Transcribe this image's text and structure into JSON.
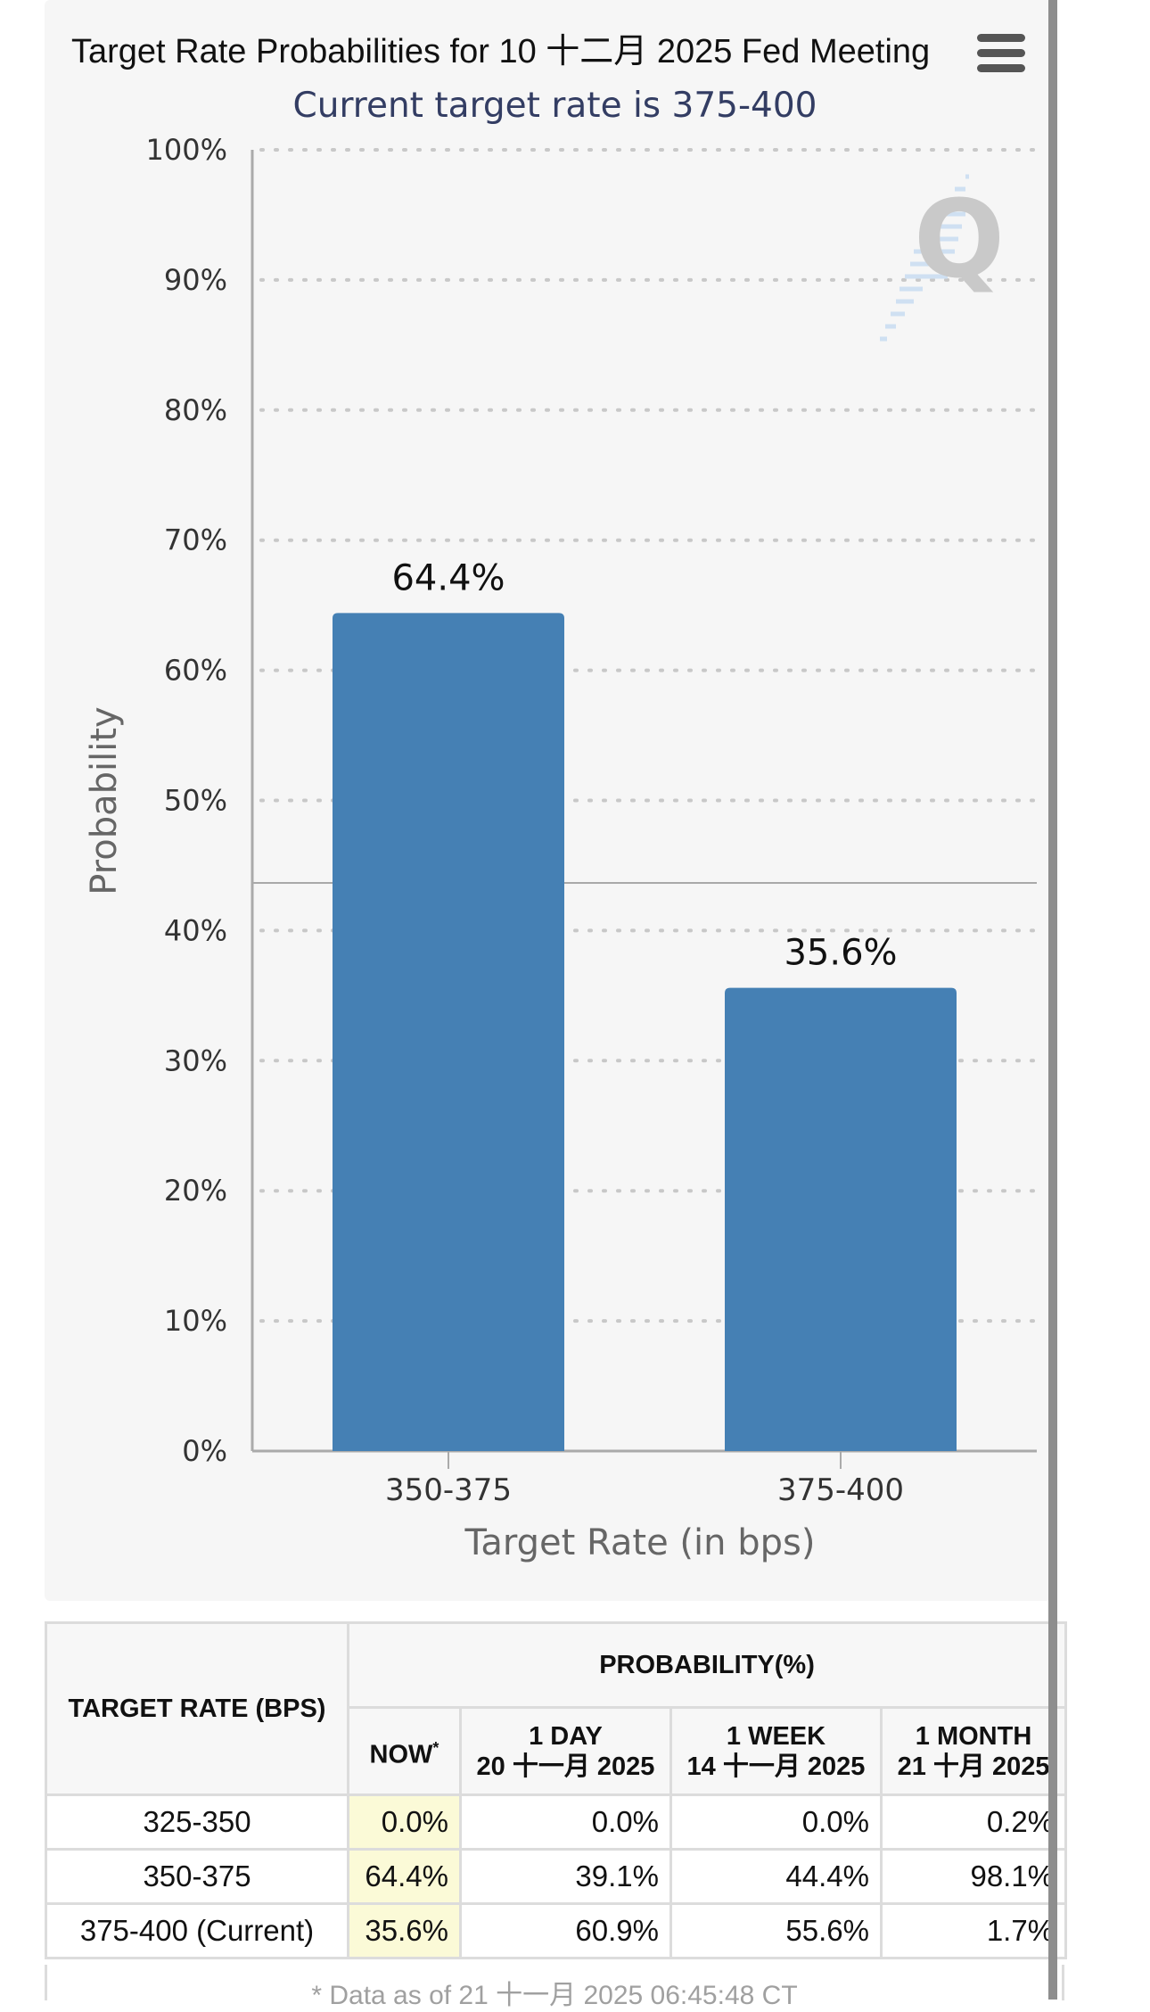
{
  "chart_data": {
    "type": "bar",
    "title": "Target Rate Probabilities for 10 十二月 2025 Fed Meeting",
    "subtitle": "Current target rate is 375-400",
    "categories": [
      "350-375",
      "375-400"
    ],
    "values": [
      64.4,
      35.6
    ],
    "data_labels": [
      "64.4%",
      "35.6%"
    ],
    "xlabel": "Target Rate (in bps)",
    "ylabel": "Probability",
    "ylim": [
      0,
      100
    ],
    "yticks": [
      "0%",
      "10%",
      "20%",
      "30%",
      "40%",
      "50%",
      "60%",
      "70%",
      "80%",
      "90%",
      "100%"
    ],
    "grid": true,
    "bar_color": "#4580b4"
  },
  "menu_icon": "hamburger-menu-icon",
  "watermark_icon": "q-logo-icon",
  "table": {
    "rate_header": "TARGET RATE (BPS)",
    "probability_header": "PROBABILITY(%)",
    "columns": [
      {
        "line1": "NOW",
        "line2": "",
        "marker": "*"
      },
      {
        "line1": "1 DAY",
        "line2": "20 十一月 2025"
      },
      {
        "line1": "1 WEEK",
        "line2": "14 十一月 2025"
      },
      {
        "line1": "1 MONTH",
        "line2": "21 十月 2025"
      }
    ],
    "rows": [
      {
        "rate": "325-350",
        "now": "0.0%",
        "day": "0.0%",
        "week": "0.0%",
        "month": "0.2%"
      },
      {
        "rate": "350-375",
        "now": "64.4%",
        "day": "39.1%",
        "week": "44.4%",
        "month": "98.1%"
      },
      {
        "rate": "375-400 (Current)",
        "now": "35.6%",
        "day": "60.9%",
        "week": "55.6%",
        "month": "1.7%"
      }
    ],
    "footnote": "* Data as of 21 十一月 2025 06:45:48 CT"
  }
}
